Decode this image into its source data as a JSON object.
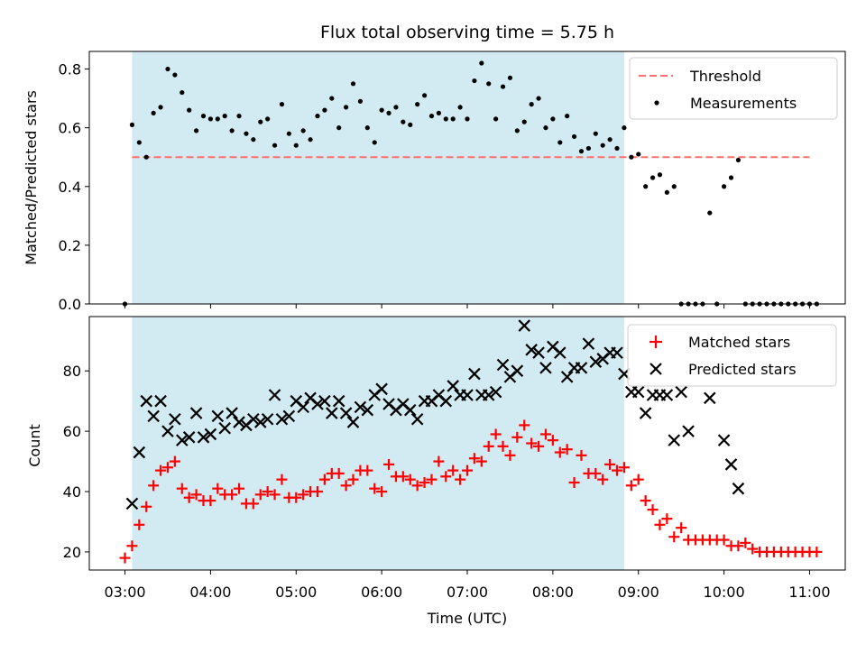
{
  "title": "Flux total observing time = 5.75 h",
  "colors": {
    "shade": "#add8e6",
    "threshold": "#ff6f6f",
    "measurement": "#000000",
    "matched": "#ff0000",
    "predicted": "#000000"
  },
  "chart_data": [
    {
      "type": "scatter",
      "ylabel": "Matched/Predicted stars",
      "xlim": [
        "02:35",
        "11:25"
      ],
      "ylim": [
        0,
        0.86
      ],
      "yticks": [
        "0.0",
        "0.2",
        "0.4",
        "0.6",
        "0.8"
      ],
      "shaded_span": {
        "start": "03:05",
        "end": "08:50"
      },
      "threshold": {
        "name": "Threshold",
        "value": 0.5,
        "start": "03:05",
        "end": "11:00"
      },
      "legend": {
        "position": "upper right",
        "entries": [
          "Threshold",
          "Measurements"
        ]
      },
      "series": [
        {
          "name": "Measurements",
          "marker": "dot",
          "x": [
            "03:00",
            "03:05",
            "03:10",
            "03:15",
            "03:20",
            "03:25",
            "03:30",
            "03:35",
            "03:40",
            "03:45",
            "03:50",
            "03:55",
            "04:00",
            "04:05",
            "04:10",
            "04:15",
            "04:20",
            "04:25",
            "04:30",
            "04:35",
            "04:40",
            "04:45",
            "04:50",
            "04:55",
            "05:00",
            "05:05",
            "05:10",
            "05:15",
            "05:20",
            "05:25",
            "05:30",
            "05:35",
            "05:40",
            "05:45",
            "05:50",
            "05:55",
            "06:00",
            "06:05",
            "06:10",
            "06:15",
            "06:20",
            "06:25",
            "06:30",
            "06:35",
            "06:40",
            "06:45",
            "06:50",
            "06:55",
            "07:00",
            "07:05",
            "07:10",
            "07:15",
            "07:20",
            "07:25",
            "07:30",
            "07:35",
            "07:40",
            "07:45",
            "07:50",
            "07:55",
            "08:00",
            "08:05",
            "08:10",
            "08:15",
            "08:20",
            "08:25",
            "08:30",
            "08:35",
            "08:40",
            "08:45",
            "08:50",
            "08:55",
            "09:00",
            "09:05",
            "09:10",
            "09:15",
            "09:20",
            "09:25",
            "09:30",
            "09:35",
            "09:40",
            "09:45",
            "09:50",
            "09:55",
            "10:00",
            "10:05",
            "10:10",
            "10:15",
            "10:20",
            "10:25",
            "10:30",
            "10:35",
            "10:40",
            "10:45",
            "10:50",
            "10:55",
            "11:00",
            "11:05"
          ],
          "y": [
            0.0,
            0.61,
            0.55,
            0.5,
            0.65,
            0.67,
            0.8,
            0.78,
            0.72,
            0.66,
            0.59,
            0.64,
            0.63,
            0.63,
            0.64,
            0.59,
            0.64,
            0.58,
            0.56,
            0.62,
            0.63,
            0.54,
            0.68,
            0.58,
            0.54,
            0.59,
            0.56,
            0.64,
            0.66,
            0.7,
            0.6,
            0.67,
            0.75,
            0.69,
            0.6,
            0.55,
            0.66,
            0.65,
            0.67,
            0.62,
            0.61,
            0.68,
            0.71,
            0.64,
            0.65,
            0.63,
            0.63,
            0.67,
            0.63,
            0.76,
            0.82,
            0.75,
            0.63,
            0.74,
            0.77,
            0.59,
            0.62,
            0.68,
            0.7,
            0.6,
            0.63,
            0.55,
            0.64,
            0.57,
            0.52,
            0.53,
            0.58,
            0.54,
            0.56,
            0.53,
            0.6,
            0.5,
            0.51,
            0.4,
            0.43,
            0.44,
            0.38,
            0.4,
            0.0,
            0.0,
            0.0,
            0.0,
            0.31,
            0.0,
            0.4,
            0.43,
            0.49,
            0.0,
            0.0,
            0.0,
            0.0,
            0.0,
            0.0,
            0.0,
            0.0,
            0.0,
            0.0,
            0.0
          ]
        }
      ]
    },
    {
      "type": "scatter",
      "xlabel": "Time (UTC)",
      "ylabel": "Count",
      "xlim": [
        "02:35",
        "11:25"
      ],
      "ylim": [
        14,
        98
      ],
      "yticks": [
        "20",
        "40",
        "60",
        "80"
      ],
      "xticks": [
        "03:00",
        "04:00",
        "05:00",
        "06:00",
        "07:00",
        "08:00",
        "09:00",
        "10:00",
        "11:00"
      ],
      "shaded_span": {
        "start": "03:05",
        "end": "08:50"
      },
      "legend": {
        "position": "upper right",
        "entries": [
          "Matched stars",
          "Predicted stars"
        ]
      },
      "series": [
        {
          "name": "Matched stars",
          "marker": "plus",
          "x": [
            "03:00",
            "03:05",
            "03:10",
            "03:15",
            "03:20",
            "03:25",
            "03:30",
            "03:35",
            "03:40",
            "03:45",
            "03:50",
            "03:55",
            "04:00",
            "04:05",
            "04:10",
            "04:15",
            "04:20",
            "04:25",
            "04:30",
            "04:35",
            "04:40",
            "04:45",
            "04:50",
            "04:55",
            "05:00",
            "05:05",
            "05:10",
            "05:15",
            "05:20",
            "05:25",
            "05:30",
            "05:35",
            "05:40",
            "05:45",
            "05:50",
            "05:55",
            "06:00",
            "06:05",
            "06:10",
            "06:15",
            "06:20",
            "06:25",
            "06:30",
            "06:35",
            "06:40",
            "06:45",
            "06:50",
            "06:55",
            "07:00",
            "07:05",
            "07:10",
            "07:15",
            "07:20",
            "07:25",
            "07:30",
            "07:35",
            "07:40",
            "07:45",
            "07:50",
            "07:55",
            "08:00",
            "08:05",
            "08:10",
            "08:15",
            "08:20",
            "08:25",
            "08:30",
            "08:35",
            "08:40",
            "08:45",
            "08:50",
            "08:55",
            "09:00",
            "09:05",
            "09:10",
            "09:15",
            "09:20",
            "09:25",
            "09:30",
            "09:35",
            "09:40",
            "09:45",
            "09:50",
            "09:55",
            "10:00",
            "10:05",
            "10:10",
            "10:15",
            "10:20",
            "10:25",
            "10:30",
            "10:35",
            "10:40",
            "10:45",
            "10:50",
            "10:55",
            "11:00",
            "11:05"
          ],
          "y": [
            18,
            22,
            29,
            35,
            42,
            47,
            48,
            50,
            41,
            38,
            39,
            37,
            37,
            41,
            39,
            39,
            41,
            36,
            36,
            39,
            40,
            39,
            44,
            38,
            38,
            39,
            40,
            40,
            44,
            46,
            46,
            42,
            44,
            47,
            47,
            41,
            40,
            49,
            45,
            45,
            44,
            42,
            43,
            44,
            50,
            45,
            47,
            44,
            47,
            51,
            50,
            55,
            59,
            55,
            52,
            58,
            62,
            56,
            55,
            59,
            57,
            53,
            54,
            43,
            52,
            46,
            46,
            44,
            49,
            47,
            48,
            42,
            44,
            37,
            34,
            29,
            31,
            25,
            28,
            24,
            24,
            24,
            24,
            24,
            24,
            22,
            22,
            23,
            21,
            20,
            20,
            20,
            20,
            20,
            20,
            20,
            20,
            20
          ]
        },
        {
          "name": "Predicted stars",
          "marker": "x",
          "x": [
            "03:05",
            "03:10",
            "03:15",
            "03:20",
            "03:25",
            "03:30",
            "03:35",
            "03:40",
            "03:45",
            "03:50",
            "03:55",
            "04:00",
            "04:05",
            "04:10",
            "04:15",
            "04:20",
            "04:25",
            "04:30",
            "04:35",
            "04:40",
            "04:45",
            "04:50",
            "04:55",
            "05:00",
            "05:05",
            "05:10",
            "05:15",
            "05:20",
            "05:25",
            "05:30",
            "05:35",
            "05:40",
            "05:45",
            "05:50",
            "05:55",
            "06:00",
            "06:05",
            "06:10",
            "06:15",
            "06:20",
            "06:25",
            "06:30",
            "06:35",
            "06:40",
            "06:45",
            "06:50",
            "06:55",
            "07:00",
            "07:05",
            "07:10",
            "07:15",
            "07:20",
            "07:25",
            "07:30",
            "07:35",
            "07:40",
            "07:45",
            "07:50",
            "07:55",
            "08:00",
            "08:05",
            "08:10",
            "08:15",
            "08:20",
            "08:25",
            "08:30",
            "08:35",
            "08:40",
            "08:45",
            "08:50",
            "08:55",
            "09:00",
            "09:05",
            "09:10",
            "09:15",
            "09:20",
            "09:25",
            "09:30",
            "09:35",
            "09:50",
            "10:00",
            "10:05",
            "10:10"
          ],
          "y": [
            36,
            53,
            70,
            65,
            70,
            60,
            64,
            57,
            58,
            66,
            58,
            59,
            65,
            61,
            66,
            63,
            62,
            64,
            63,
            64,
            72,
            64,
            65,
            70,
            68,
            71,
            69,
            70,
            66,
            70,
            66,
            63,
            68,
            67,
            72,
            74,
            69,
            67,
            69,
            67,
            64,
            70,
            70,
            72,
            70,
            75,
            72,
            72,
            79,
            72,
            72,
            73,
            82,
            78,
            80,
            95,
            87,
            86,
            81,
            88,
            86,
            78,
            81,
            81,
            89,
            83,
            84,
            86,
            86,
            79,
            73,
            73,
            66,
            72,
            72,
            72,
            57,
            73,
            60,
            71,
            57,
            49,
            41
          ]
        }
      ]
    }
  ]
}
